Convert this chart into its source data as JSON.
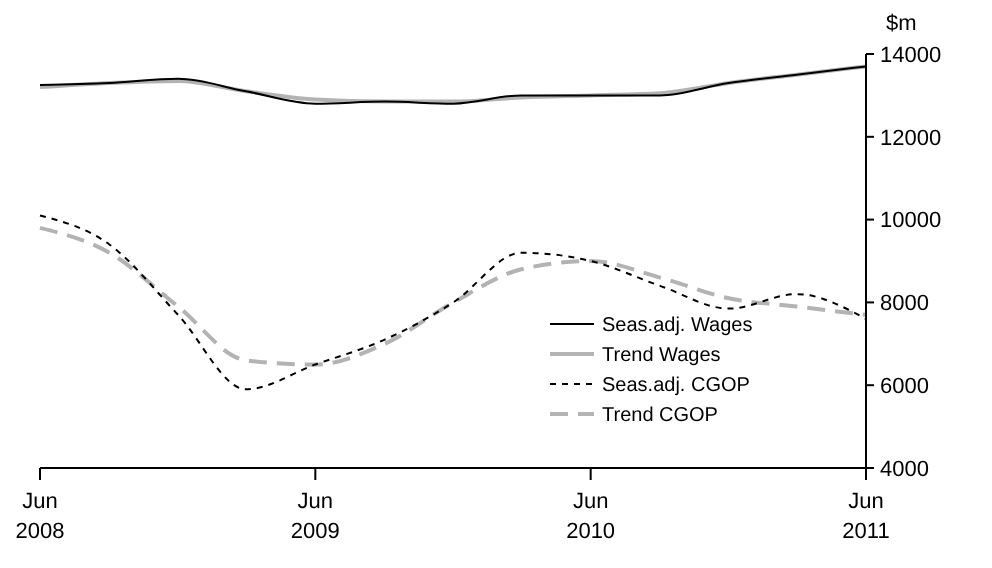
{
  "chart_data": {
    "type": "line",
    "ylabel": "$m",
    "x": [
      "2008-06",
      "2008-09",
      "2008-12",
      "2009-03",
      "2009-06",
      "2009-09",
      "2009-12",
      "2010-03",
      "2010-06",
      "2010-09",
      "2010-12",
      "2011-03",
      "2011-06"
    ],
    "xlim": [
      "2008-06",
      "2011-06"
    ],
    "xticks": [
      {
        "value": "2008-06",
        "label": "Jun 2008"
      },
      {
        "value": "2009-06",
        "label": "Jun 2009"
      },
      {
        "value": "2010-06",
        "label": "Jun 2010"
      },
      {
        "value": "2011-06",
        "label": "Jun 2011"
      }
    ],
    "ylim": [
      4000,
      14000
    ],
    "yticks": [
      4000,
      6000,
      8000,
      10000,
      12000,
      14000
    ],
    "grid": false,
    "legend": "bottom right",
    "series": [
      {
        "name": "Seas.adj. Wages",
        "color": "#000000",
        "line_style": "solid",
        "values": [
          13250,
          13300,
          13400,
          13100,
          12800,
          12850,
          12800,
          13000,
          13000,
          13000,
          13300,
          13500,
          13700
        ]
      },
      {
        "name": "Trend Wages",
        "color": "#b3b3b3",
        "line_style": "solid",
        "values": [
          13200,
          13300,
          13350,
          13100,
          12900,
          12850,
          12850,
          12950,
          13000,
          13050,
          13300,
          13500,
          13700
        ]
      },
      {
        "name": "Seas.adj. CGOP",
        "color": "#000000",
        "line_style": "dotted",
        "values": [
          10100,
          9400,
          7700,
          5900,
          6500,
          7100,
          8000,
          9200,
          9000,
          8400,
          7850,
          8200,
          7600
        ]
      },
      {
        "name": "Trend CGOP",
        "color": "#b3b3b3",
        "line_style": "dashed",
        "values": [
          9800,
          9200,
          7900,
          6600,
          6500,
          7000,
          8000,
          8800,
          9000,
          8600,
          8100,
          7900,
          7700
        ]
      }
    ]
  }
}
